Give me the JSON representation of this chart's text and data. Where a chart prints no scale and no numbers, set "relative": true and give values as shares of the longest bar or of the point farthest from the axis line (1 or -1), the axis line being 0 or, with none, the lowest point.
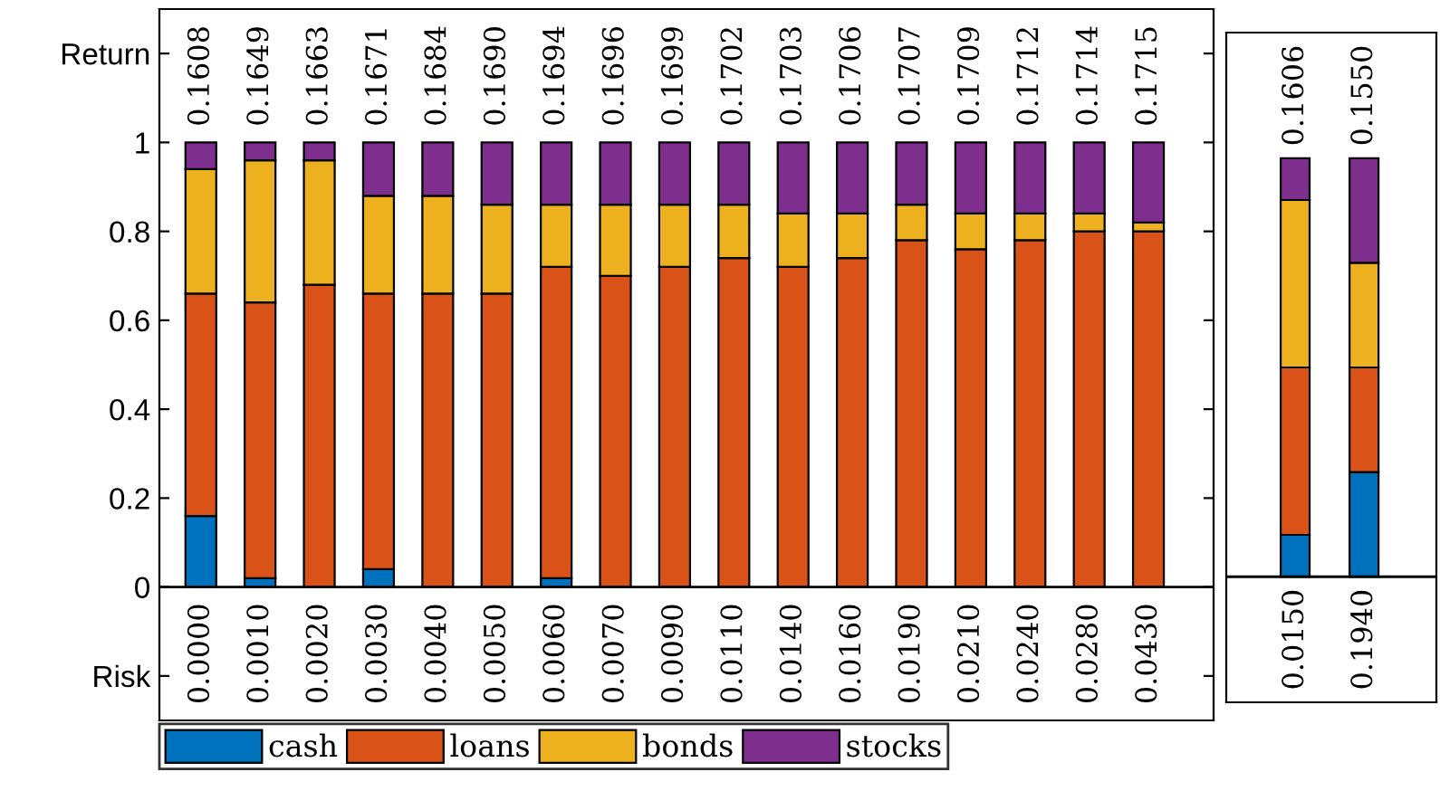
{
  "chart_data": [
    {
      "type": "bar",
      "stacked": true,
      "categories": [
        "0.0000",
        "0.0010",
        "0.0020",
        "0.0030",
        "0.0040",
        "0.0050",
        "0.0060",
        "0.0070",
        "0.0090",
        "0.0110",
        "0.0140",
        "0.0160",
        "0.0190",
        "0.0210",
        "0.0240",
        "0.0280",
        "0.0430"
      ],
      "series": [
        {
          "name": "cash",
          "color": "#0072bd",
          "values": [
            0.16,
            0.02,
            0,
            0.04,
            0,
            0,
            0.02,
            0,
            0,
            0,
            0,
            0,
            0,
            0,
            0,
            0,
            0
          ]
        },
        {
          "name": "loans",
          "color": "#d95319",
          "values": [
            0.5,
            0.62,
            0.68,
            0.62,
            0.66,
            0.66,
            0.7,
            0.7,
            0.72,
            0.74,
            0.72,
            0.74,
            0.78,
            0.76,
            0.78,
            0.8,
            0.8
          ]
        },
        {
          "name": "bonds",
          "color": "#edb120",
          "values": [
            0.28,
            0.32,
            0.28,
            0.22,
            0.22,
            0.2,
            0.14,
            0.16,
            0.14,
            0.12,
            0.12,
            0.1,
            0.08,
            0.08,
            0.06,
            0.04,
            0.02
          ]
        },
        {
          "name": "stocks",
          "color": "#7e2f8e",
          "values": [
            0.06,
            0.04,
            0.04,
            0.12,
            0.12,
            0.14,
            0.14,
            0.14,
            0.14,
            0.14,
            0.16,
            0.16,
            0.14,
            0.16,
            0.16,
            0.16,
            0.18
          ]
        }
      ],
      "ylim": [
        -0.3,
        1.3
      ],
      "yticks": [
        {
          "value": -0.2,
          "label": "Risk"
        },
        0,
        0.2,
        0.4,
        0.6,
        0.8,
        1,
        {
          "value": 1.2,
          "label": "Return"
        }
      ],
      "ref_lines": [
        {
          "axis": "y",
          "value": 0,
          "color": "#000000"
        }
      ],
      "annotations": [
        "0.1608",
        "0.1649",
        "0.1663",
        "0.1671",
        "0.1684",
        "0.1690",
        "0.1694",
        "0.1696",
        "0.1699",
        "0.1702",
        "0.1703",
        "0.1706",
        "0.1707",
        "0.1709",
        "0.1712",
        "0.1714",
        "0.1715"
      ],
      "legend": "bottom",
      "grid": false
    },
    {
      "type": "bar",
      "stacked": true,
      "categories": [
        "0.0150",
        "0.1940"
      ],
      "series": [
        {
          "color": "#0072bd",
          "values": [
            0.1,
            0.25
          ]
        },
        {
          "color": "#d95319",
          "values": [
            0.4,
            0.25
          ]
        },
        {
          "color": "#edb120",
          "values": [
            0.4,
            0.25
          ]
        },
        {
          "color": "#7e2f8e",
          "values": [
            0.1,
            0.25
          ]
        }
      ],
      "relative": true,
      "annotations": [
        "0.1606",
        "0.1550"
      ],
      "grid": false
    }
  ]
}
